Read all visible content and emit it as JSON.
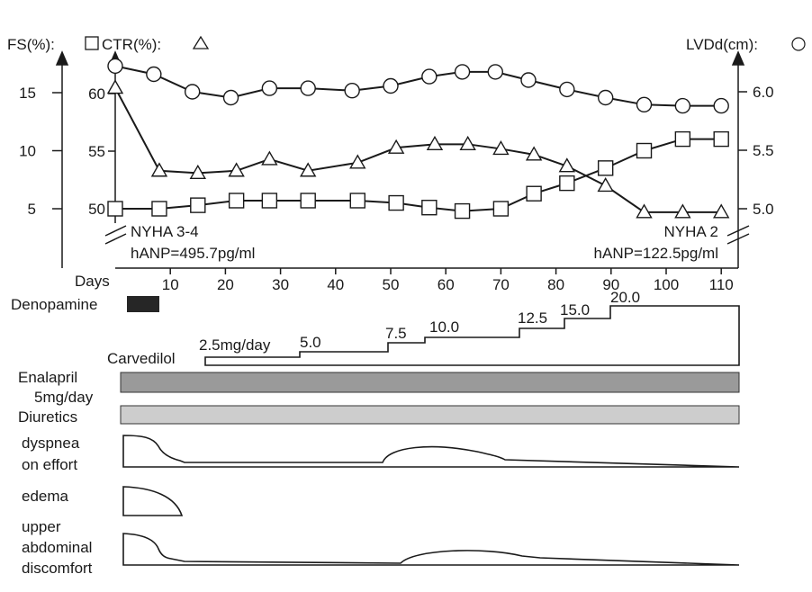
{
  "chart_data": {
    "type": "line",
    "x_axis": {
      "label": "Days",
      "ticks": [
        10,
        20,
        30,
        40,
        50,
        60,
        70,
        80,
        90,
        100,
        110
      ],
      "range": [
        0,
        110
      ]
    },
    "axes": {
      "fs": {
        "label": "FS(%):",
        "ticks": [
          5,
          10,
          15
        ],
        "range": [
          3,
          17
        ]
      },
      "ctr": {
        "label": "CTR(%):",
        "ticks": [
          50,
          55,
          60
        ],
        "range": [
          48,
          63
        ]
      },
      "lvdd": {
        "label": "LVDd(cm):",
        "ticks": [
          "5.0",
          "5.5",
          "6.0"
        ],
        "range": [
          4.9,
          6.3
        ]
      }
    },
    "series": [
      {
        "marker": "triangle",
        "axis": "ctr",
        "x": [
          0,
          8,
          15,
          22,
          28,
          35,
          44,
          51,
          58,
          64,
          70,
          76,
          82,
          89,
          96,
          103,
          110
        ],
        "y": [
          60.5,
          53.3,
          53.1,
          53.3,
          54.3,
          53.3,
          54.0,
          55.3,
          55.6,
          55.6,
          55.2,
          54.7,
          53.7,
          52.0,
          49.7,
          49.7,
          49.7
        ]
      },
      {
        "marker": "square",
        "axis": "fs",
        "x": [
          0,
          8,
          15,
          22,
          28,
          35,
          44,
          51,
          57,
          63,
          70,
          76,
          82,
          89,
          96,
          103,
          110
        ],
        "y": [
          5.0,
          5.0,
          5.3,
          5.7,
          5.7,
          5.7,
          5.7,
          5.5,
          5.1,
          4.8,
          5.0,
          6.3,
          7.2,
          8.5,
          10.0,
          11.0,
          11.0
        ]
      },
      {
        "marker": "circle",
        "axis": "lvdd",
        "x": [
          0,
          7,
          14,
          21,
          28,
          35,
          43,
          50,
          57,
          63,
          69,
          75,
          82,
          89,
          96,
          103,
          110
        ],
        "y": [
          6.22,
          6.15,
          6.0,
          5.95,
          6.03,
          6.03,
          6.01,
          6.05,
          6.13,
          6.17,
          6.17,
          6.1,
          6.02,
          5.95,
          5.89,
          5.88,
          5.88
        ]
      }
    ],
    "annotations": {
      "left_class": "NYHA 3-4",
      "left_hanp": "hANP=495.7pg/ml",
      "right_class": "NYHA 2",
      "right_hanp": "hANP=122.5pg/ml"
    },
    "treatments": {
      "denopamine": {
        "label": "Denopamine",
        "start": 0,
        "end": 7
      },
      "carvedilol": {
        "label": "Carvedilol",
        "steps": [
          {
            "label": "2.5mg/day",
            "start": 15,
            "dose": 2.5
          },
          {
            "label": "5.0",
            "start": 30,
            "dose": 5.0
          },
          {
            "label": "7.5",
            "start": 49,
            "dose": 7.5
          },
          {
            "label": "10.0",
            "start": 55,
            "dose": 10.0
          },
          {
            "label": "12.5",
            "start": 71,
            "dose": 12.5
          },
          {
            "label": "15.0",
            "start": 79,
            "dose": 15.0
          },
          {
            "label": "20.0",
            "start": 87,
            "dose": 20.0
          }
        ],
        "end": 110
      },
      "enalapril": {
        "label1": "Enalapril",
        "label2": "5mg/day"
      },
      "diuretics": {
        "label": "Diuretics"
      }
    },
    "symptoms": [
      {
        "label_lines": [
          "dyspnea",
          "on effort"
        ]
      },
      {
        "label_lines": [
          "edema"
        ]
      },
      {
        "label_lines": [
          "upper",
          "abdominal",
          "discomfort"
        ]
      }
    ]
  }
}
